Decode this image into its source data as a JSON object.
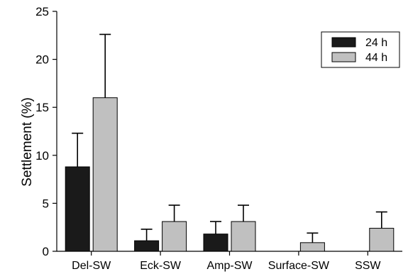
{
  "chart_data": {
    "type": "bar",
    "title": "",
    "xlabel": "",
    "ylabel": "Settlement (%)",
    "ylim": [
      0,
      25
    ],
    "yticks": [
      0,
      5,
      10,
      15,
      20,
      25
    ],
    "categories": [
      "Del-SW",
      "Eck-SW",
      "Amp-SW",
      "Surface-SW",
      "SSW"
    ],
    "series": [
      {
        "name": "24 h",
        "color": "#1a1a1a",
        "values": [
          8.8,
          1.1,
          1.8,
          0,
          0
        ],
        "errors": [
          3.5,
          1.2,
          1.3,
          0,
          0
        ]
      },
      {
        "name": "44 h",
        "color": "#c0c0c0",
        "values": [
          16.0,
          3.1,
          3.1,
          0.9,
          2.4
        ],
        "errors": [
          6.6,
          1.7,
          1.7,
          1.0,
          1.7
        ]
      }
    ],
    "legend_position": "top-right",
    "grid": false
  }
}
